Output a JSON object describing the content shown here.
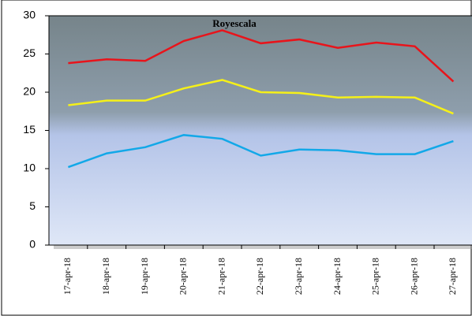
{
  "chart_data": {
    "type": "line",
    "title": "Royescala",
    "categories": [
      "17-apr-18",
      "18-apr-18",
      "19-apr-18",
      "20-apr-18",
      "21-apr-18",
      "22-apr-18",
      "23-apr-18",
      "24-apr-18",
      "25-apr-18",
      "26-apr-18",
      "27-apr-18"
    ],
    "series": [
      {
        "color": "#e8141b",
        "values": [
          23.8,
          24.3,
          24.1,
          26.7,
          28.1,
          26.4,
          26.9,
          25.8,
          26.5,
          26.0,
          21.4
        ]
      },
      {
        "color": "#f5f019",
        "values": [
          18.3,
          18.9,
          18.9,
          20.5,
          21.6,
          20.0,
          19.9,
          19.3,
          19.4,
          19.3,
          17.2
        ]
      },
      {
        "color": "#12a8e8",
        "values": [
          10.2,
          12.0,
          12.8,
          14.4,
          13.9,
          11.7,
          12.5,
          12.4,
          11.9,
          11.9,
          13.6
        ]
      }
    ],
    "ylim": [
      0,
      30
    ],
    "yticks": [
      0,
      5,
      10,
      15,
      20,
      25,
      30
    ]
  }
}
